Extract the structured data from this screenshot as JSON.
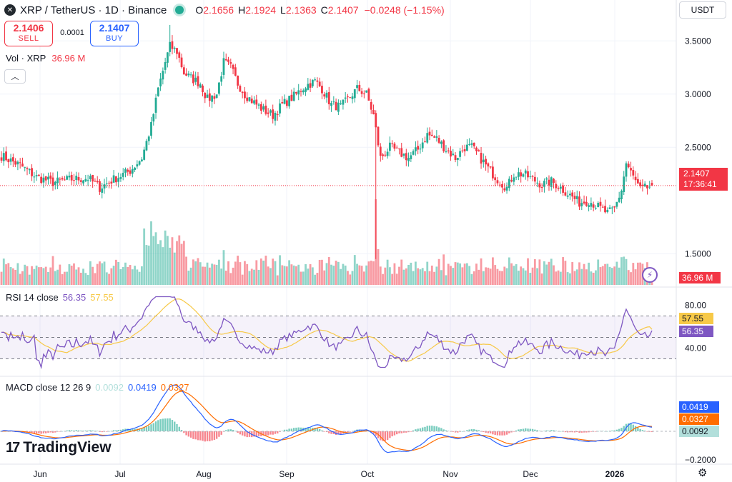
{
  "header": {
    "symbol_icon": "x-logo-icon",
    "symbol_glyph": "✕",
    "title": "XRP / TetherUS · 1D · Binance",
    "open_label": "O",
    "open": "2.1656",
    "high_label": "H",
    "high": "2.1924",
    "low_label": "L",
    "low": "2.1363",
    "close_label": "C",
    "close": "2.1407",
    "change": "−0.0248 (−1.15%)"
  },
  "trade": {
    "sell_price": "2.1406",
    "sell_label": "SELL",
    "spread": "0.0001",
    "buy_price": "2.1407",
    "buy_label": "BUY"
  },
  "volume": {
    "label": "Vol · XRP",
    "value": "36.96 M",
    "axis_tag": "36.96 M"
  },
  "collapse_glyph": "︿",
  "currency": "USDT",
  "price_tag": {
    "price": "2.1407",
    "countdown": "17:36:41"
  },
  "rsi": {
    "label": "RSI 14 close",
    "rsi_value": "56.35",
    "ma_value": "57.55",
    "tag_rsi": "56.35",
    "tag_ma": "57.55"
  },
  "macd": {
    "label": "MACD close 12 26 9",
    "hist": "0.0092",
    "macd": "0.0419",
    "signal": "0.0327",
    "tag_hist": "0.0092",
    "tag_macd": "0.0419",
    "tag_signal": "0.0327"
  },
  "brand": {
    "mark": "17",
    "name": "TradingView"
  },
  "colors": {
    "up": "#22ab94",
    "down": "#f23645",
    "rsi": "#7e57c2",
    "rsi_ma": "#f7c948",
    "macd": "#2962ff",
    "signal": "#ff6d00"
  },
  "chart_data": {
    "type": "candlestick",
    "price_axis": {
      "ticks": [
        "3.5000",
        "3.0000",
        "2.5000",
        "1.5000"
      ],
      "ylim": [
        1.2,
        3.75
      ]
    },
    "rsi_axis": {
      "ticks": [
        "80.00",
        "40.00"
      ],
      "upper_band": 70,
      "lower_band": 30
    },
    "macd_axis": {
      "ticks": [
        "−0.2000"
      ]
    },
    "x_labels": [
      "Jun",
      "Jul",
      "Aug",
      "Sep",
      "Oct",
      "Nov",
      "Dec",
      "2026"
    ],
    "close_anchors": [
      [
        0,
        2.42
      ],
      [
        8,
        2.33
      ],
      [
        15,
        2.22
      ],
      [
        22,
        2.17
      ],
      [
        30,
        2.2
      ],
      [
        37,
        2.21
      ],
      [
        42,
        2.12
      ],
      [
        48,
        2.2
      ],
      [
        55,
        2.28
      ],
      [
        60,
        2.4
      ],
      [
        64,
        2.7
      ],
      [
        67,
        3.05
      ],
      [
        70,
        3.3
      ],
      [
        72,
        3.45
      ],
      [
        75,
        3.4
      ],
      [
        78,
        3.2
      ],
      [
        81,
        3.15
      ],
      [
        85,
        3.1
      ],
      [
        88,
        2.95
      ],
      [
        92,
        3.0
      ],
      [
        95,
        3.3
      ],
      [
        98,
        3.25
      ],
      [
        101,
        3.1
      ],
      [
        104,
        3.0
      ],
      [
        108,
        2.92
      ],
      [
        112,
        2.85
      ],
      [
        116,
        2.8
      ],
      [
        120,
        2.9
      ],
      [
        125,
        2.98
      ],
      [
        130,
        3.08
      ],
      [
        134,
        3.12
      ],
      [
        137,
        3.05
      ],
      [
        141,
        2.9
      ],
      [
        145,
        2.88
      ],
      [
        148,
        2.95
      ],
      [
        152,
        3.05
      ],
      [
        156,
        3.0
      ],
      [
        159,
        2.8
      ],
      [
        162,
        2.4
      ],
      [
        166,
        2.5
      ],
      [
        170,
        2.45
      ],
      [
        174,
        2.4
      ],
      [
        178,
        2.48
      ],
      [
        182,
        2.62
      ],
      [
        186,
        2.58
      ],
      [
        190,
        2.48
      ],
      [
        194,
        2.4
      ],
      [
        198,
        2.5
      ],
      [
        201,
        2.5
      ],
      [
        204,
        2.42
      ],
      [
        208,
        2.3
      ],
      [
        212,
        2.2
      ],
      [
        216,
        2.12
      ],
      [
        219,
        2.25
      ],
      [
        223,
        2.25
      ],
      [
        227,
        2.2
      ],
      [
        231,
        2.15
      ],
      [
        235,
        2.18
      ],
      [
        239,
        2.12
      ],
      [
        243,
        2.05
      ],
      [
        247,
        1.98
      ],
      [
        251,
        2.0
      ],
      [
        255,
        1.94
      ],
      [
        259,
        1.88
      ],
      [
        262,
        1.92
      ],
      [
        265,
        2.1
      ],
      [
        267,
        2.35
      ],
      [
        270,
        2.22
      ],
      [
        273,
        2.1
      ],
      [
        276,
        2.12
      ],
      [
        278,
        2.1407
      ]
    ],
    "candle_count": 279,
    "last_candle": {
      "open": 2.1656,
      "high": 2.1924,
      "low": 2.1363,
      "close": 2.1407,
      "volume": "36.96 M"
    },
    "last": {
      "rsi": 56.35,
      "rsi_ma": 57.55,
      "macd": 0.0419,
      "signal": 0.0327,
      "hist": 0.0092
    }
  }
}
